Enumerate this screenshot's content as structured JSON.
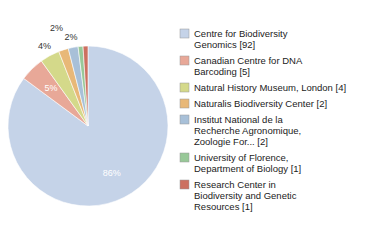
{
  "chart_data": {
    "type": "pie",
    "categories": [
      "Centre for Biodiversity\nGenomics [92]",
      "Canadian Centre for DNA\nBarcoding [5]",
      "Natural History Museum, London [4]",
      "Naturalis Biodiversity Center [2]",
      "Institut National de la\nRecherche Agronomique,\nZoologie For... [2]",
      "University of Florence,\nDepartment of Biology [1]",
      "Research Center in\nBiodiversity and Genetic\nResources [1]"
    ],
    "values": [
      86,
      5,
      4,
      2,
      2,
      1,
      1
    ],
    "value_labels": [
      "86%",
      "5%",
      "4%",
      "2%",
      "2%",
      null,
      null
    ],
    "colors": [
      "#c5d3e8",
      "#e8a898",
      "#d4d98a",
      "#e8b878",
      "#a8c0d8",
      "#98c898",
      "#cc7060"
    ],
    "data_labels": true,
    "legend": "right"
  }
}
